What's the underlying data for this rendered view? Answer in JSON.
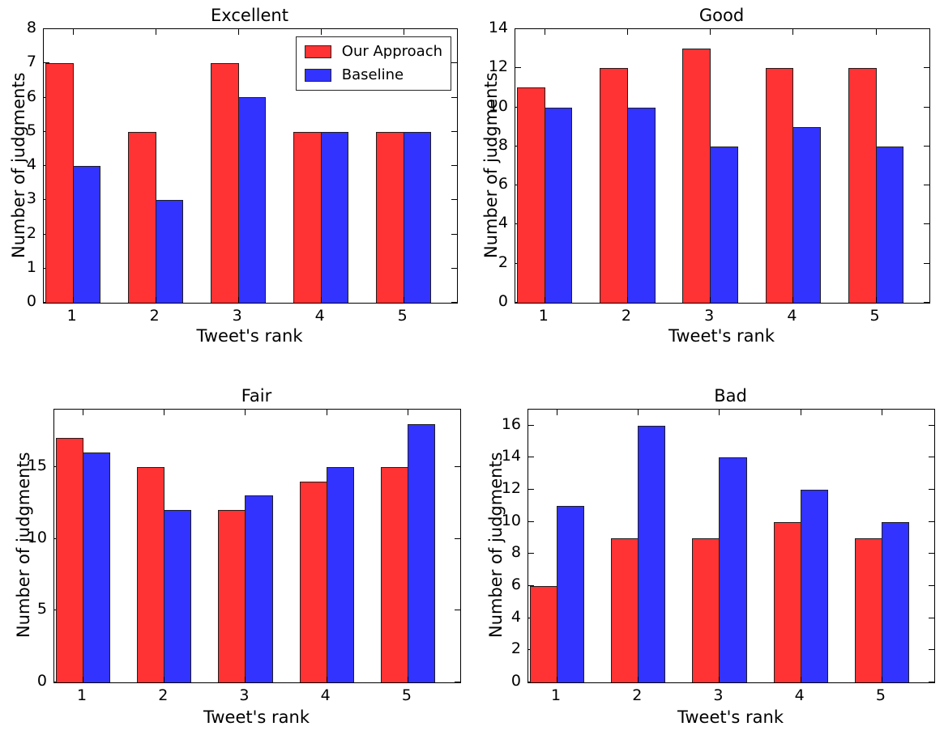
{
  "figure": {
    "background": "#ffffff",
    "colors": {
      "our_approach": "#ff3333",
      "baseline": "#3333ff",
      "bar_edge": "#1f1f1f",
      "axis": "#000000"
    }
  },
  "chart_data": [
    {
      "type": "bar",
      "title": "Excellent",
      "xlabel": "Tweet's rank",
      "ylabel": "Number of judgments",
      "categories": [
        "1",
        "2",
        "3",
        "4",
        "5"
      ],
      "series": [
        {
          "name": "Our Approach",
          "color": "#ff3333",
          "values": [
            7,
            5,
            7,
            5,
            5
          ]
        },
        {
          "name": "Baseline",
          "color": "#3333ff",
          "values": [
            4,
            3,
            6,
            5,
            5
          ]
        }
      ],
      "ylim": [
        0,
        8
      ],
      "yticks": [
        0,
        1,
        2,
        3,
        4,
        5,
        6,
        7,
        8
      ],
      "grid": false,
      "legend": {
        "visible": true,
        "position": "upper right",
        "labels": [
          "Our Approach",
          "Baseline"
        ]
      }
    },
    {
      "type": "bar",
      "title": "Good",
      "xlabel": "Tweet's rank",
      "ylabel": "Number of judgments",
      "categories": [
        "1",
        "2",
        "3",
        "4",
        "5"
      ],
      "series": [
        {
          "name": "Our Approach",
          "color": "#ff3333",
          "values": [
            11,
            12,
            13,
            12,
            12
          ]
        },
        {
          "name": "Baseline",
          "color": "#3333ff",
          "values": [
            10,
            10,
            8,
            9,
            8
          ]
        }
      ],
      "ylim": [
        0,
        14
      ],
      "yticks": [
        0,
        2,
        4,
        6,
        8,
        10,
        12,
        14
      ],
      "grid": false,
      "legend": {
        "visible": false
      }
    },
    {
      "type": "bar",
      "title": "Fair",
      "xlabel": "Tweet's rank",
      "ylabel": "Number of judgments",
      "categories": [
        "1",
        "2",
        "3",
        "4",
        "5"
      ],
      "series": [
        {
          "name": "Our Approach",
          "color": "#ff3333",
          "values": [
            17,
            15,
            12,
            14,
            15
          ]
        },
        {
          "name": "Baseline",
          "color": "#3333ff",
          "values": [
            16,
            12,
            13,
            15,
            18
          ]
        }
      ],
      "ylim": [
        0,
        19
      ],
      "yticks": [
        0,
        5,
        10,
        15
      ],
      "grid": false,
      "legend": {
        "visible": false
      }
    },
    {
      "type": "bar",
      "title": "Bad",
      "xlabel": "Tweet's rank",
      "ylabel": "Number of judgments",
      "categories": [
        "1",
        "2",
        "3",
        "4",
        "5"
      ],
      "series": [
        {
          "name": "Our Approach",
          "color": "#ff3333",
          "values": [
            6,
            9,
            9,
            10,
            9
          ]
        },
        {
          "name": "Baseline",
          "color": "#3333ff",
          "values": [
            11,
            16,
            14,
            12,
            10
          ]
        }
      ],
      "ylim": [
        0,
        17
      ],
      "yticks": [
        0,
        2,
        4,
        6,
        8,
        10,
        12,
        14,
        16
      ],
      "grid": false,
      "legend": {
        "visible": false
      }
    }
  ]
}
